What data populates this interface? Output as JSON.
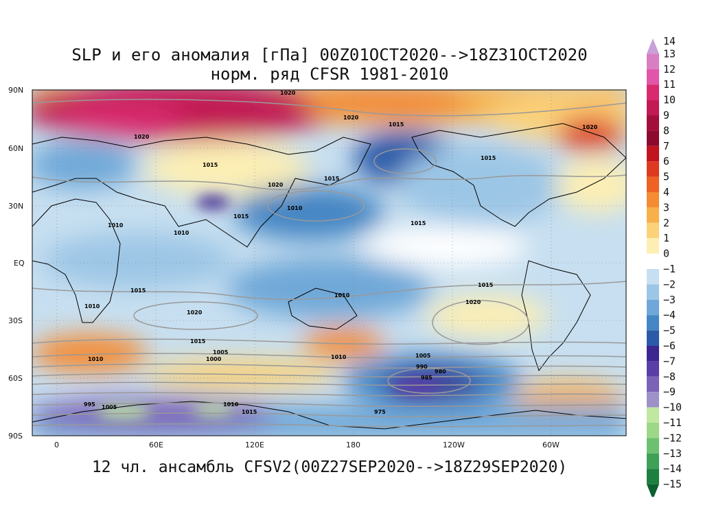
{
  "title": {
    "line1": "SLP и его аномалия [гПа] 00Z01OCT2020-->18Z31OCT2020",
    "line2": "норм. ряд CFSR 1981-2010"
  },
  "bottom_title": "12 чл. ансамбль CFSV2(00Z27SEP2020-->18Z29SEP2020)",
  "lat_labels": [
    "90N",
    "60N",
    "30N",
    "EQ",
    "30S",
    "60S",
    "90S"
  ],
  "lon_labels": [
    "0",
    "60E",
    "120E",
    "180",
    "120W",
    "60W"
  ],
  "colorbar": {
    "levels": [
      "14",
      "13",
      "12",
      "11",
      "10",
      "9",
      "8",
      "7",
      "6",
      "5",
      "4",
      "3",
      "2",
      "1",
      "0",
      "-1",
      "-2",
      "-3",
      "-4",
      "-5",
      "-6",
      "-7",
      "-8",
      "-9",
      "-10",
      "-11",
      "-12",
      "-13",
      "-14",
      "-15"
    ],
    "colors": [
      "#c9a0d8",
      "#d77fc2",
      "#e255a8",
      "#d92a6e",
      "#c21a55",
      "#a30f3c",
      "#8c0a2e",
      "#c0141e",
      "#de3a20",
      "#ee6224",
      "#f48c34",
      "#f8b04a",
      "#fbd279",
      "#fdefb4",
      "#ffffff",
      "#c7dff0",
      "#9cc6e6",
      "#6fa8d8",
      "#4586c4",
      "#2a5aa8",
      "#3c2690",
      "#5a3ea8",
      "#7b63b8",
      "#9e90c8",
      "#c0e8a0",
      "#9cd888",
      "#6cc070",
      "#40a058",
      "#1e8040",
      "#0c6030"
    ]
  },
  "isobar_labels": [
    "1020",
    "1020",
    "1020",
    "1020",
    "1020",
    "1015",
    "1015",
    "1015",
    "1015",
    "1015",
    "1015",
    "1015",
    "1015",
    "1010",
    "1010",
    "1010",
    "1010",
    "1010",
    "1010",
    "1010",
    "1005",
    "1005",
    "1005",
    "1000",
    "995",
    "990",
    "985",
    "980",
    "975",
    "1020",
    "1015",
    "1010",
    "1015",
    "1020"
  ],
  "map": {
    "lon_range": [
      -20,
      340
    ],
    "lat_range": [
      -90,
      90
    ],
    "centers": [
      {
        "name": "arctic-high-anomaly",
        "lon": 60,
        "lat": 75,
        "value": 10
      },
      {
        "name": "alaska-positive-anomaly",
        "lon": 260,
        "lat": 75,
        "value": 5
      },
      {
        "name": "aleutian-low-anomaly",
        "lon": 200,
        "lat": 55,
        "value": -4
      },
      {
        "name": "pacific-negative-anomaly",
        "lon": 150,
        "lat": 30,
        "value": -3
      },
      {
        "name": "southern-ocean-low-anomaly",
        "lon": 230,
        "lat": -62,
        "value": -6
      },
      {
        "name": "antarctic-negative-anomaly",
        "lon": 60,
        "lat": -78,
        "value": -7
      },
      {
        "name": "south-atlantic-positive-anomaly",
        "lon": 20,
        "lat": -45,
        "value": 3
      },
      {
        "name": "new-zealand-positive-anomaly",
        "lon": 170,
        "lat": -45,
        "value": 3
      }
    ]
  }
}
